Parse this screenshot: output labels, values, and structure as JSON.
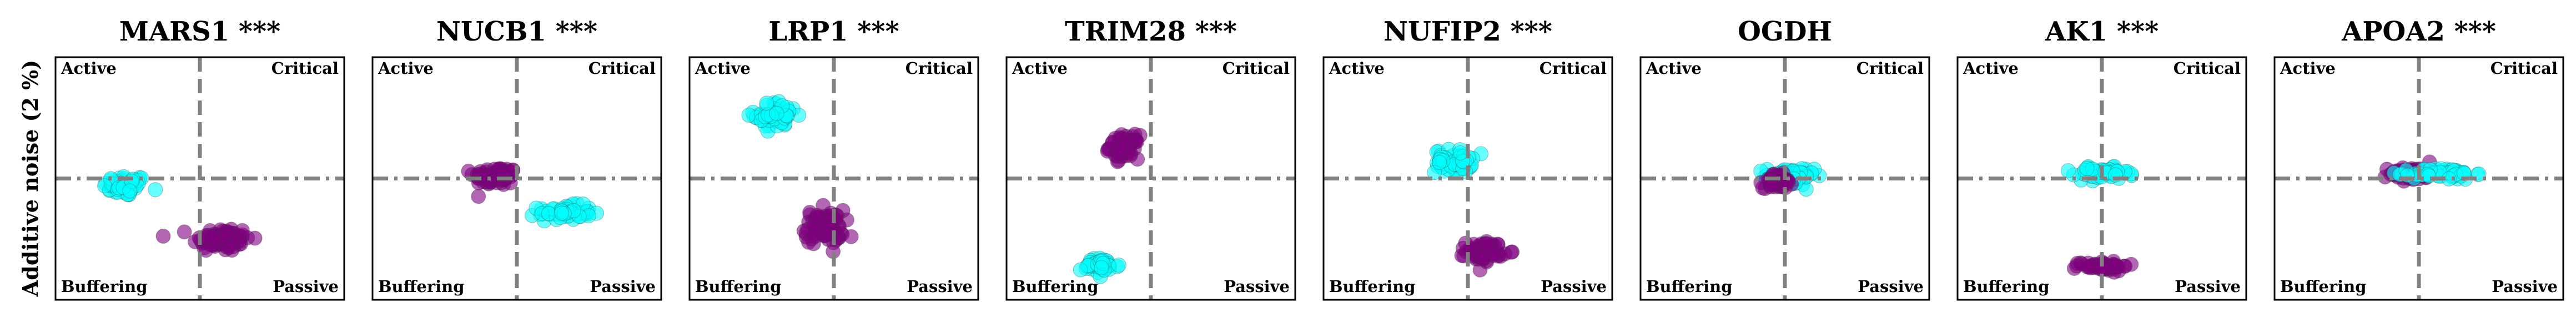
{
  "figure": {
    "ylabel": "Additive noise (2 %)"
  },
  "chart_data": [
    {
      "type": "scatter",
      "title": "MARS1 ***",
      "quadrants": {
        "top_left": "Active",
        "top_right": "Critical",
        "bottom_left": "Buffering",
        "bottom_right": "Passive"
      },
      "series": [
        {
          "color": "#00ffff",
          "center": [
            -1.55,
            -0.15
          ],
          "spread": [
            0.45,
            0.22
          ],
          "n": 60
        },
        {
          "color": "#800080",
          "center": [
            0.45,
            -1.25
          ],
          "spread": [
            0.6,
            0.26
          ],
          "n": 80
        }
      ]
    },
    {
      "type": "scatter",
      "title": "NUCB1 ***",
      "quadrants": {
        "top_left": "Active",
        "top_right": "Critical",
        "bottom_left": "Buffering",
        "bottom_right": "Passive"
      },
      "series": [
        {
          "color": "#800080",
          "center": [
            -0.45,
            0.05
          ],
          "spread": [
            0.45,
            0.2
          ],
          "n": 70
        },
        {
          "color": "#00ffff",
          "center": [
            1.0,
            -0.7
          ],
          "spread": [
            0.55,
            0.15
          ],
          "n": 60
        }
      ]
    },
    {
      "type": "scatter",
      "title": "LRP1 ***",
      "quadrants": {
        "top_left": "Active",
        "top_right": "Critical",
        "bottom_left": "Buffering",
        "bottom_right": "Passive"
      },
      "series": [
        {
          "color": "#00ffff",
          "center": [
            -1.2,
            1.3
          ],
          "spread": [
            0.45,
            0.28
          ],
          "n": 60
        },
        {
          "color": "#800080",
          "center": [
            -0.2,
            -1.0
          ],
          "spread": [
            0.4,
            0.35
          ],
          "n": 80
        }
      ]
    },
    {
      "type": "scatter",
      "title": "TRIM28 ***",
      "quadrants": {
        "top_left": "Active",
        "top_right": "Critical",
        "bottom_left": "Buffering",
        "bottom_right": "Passive"
      },
      "series": [
        {
          "color": "#800080",
          "center": [
            -0.55,
            0.65
          ],
          "spread": [
            0.3,
            0.24
          ],
          "n": 60
        },
        {
          "color": "#00ffff",
          "center": [
            -1.05,
            -1.8
          ],
          "spread": [
            0.4,
            0.16
          ],
          "n": 50
        }
      ]
    },
    {
      "type": "scatter",
      "title": "NUFIP2 ***",
      "quadrants": {
        "top_left": "Active",
        "top_right": "Critical",
        "bottom_left": "Buffering",
        "bottom_right": "Passive"
      },
      "series": [
        {
          "color": "#00ffff",
          "center": [
            -0.3,
            0.35
          ],
          "spread": [
            0.38,
            0.24
          ],
          "n": 60
        },
        {
          "color": "#800080",
          "center": [
            0.35,
            -1.5
          ],
          "spread": [
            0.38,
            0.2
          ],
          "n": 70
        }
      ]
    },
    {
      "type": "scatter",
      "title": "OGDH",
      "quadrants": {
        "top_left": "Active",
        "top_right": "Critical",
        "bottom_left": "Buffering",
        "bottom_right": "Passive"
      },
      "series": [
        {
          "color": "#00ffff",
          "center": [
            0.1,
            0.05
          ],
          "spread": [
            0.5,
            0.18
          ],
          "n": 60
        },
        {
          "color": "#800080",
          "center": [
            -0.15,
            -0.05
          ],
          "spread": [
            0.3,
            0.15
          ],
          "n": 60
        }
      ]
    },
    {
      "type": "scatter",
      "title": "AK1 ***",
      "quadrants": {
        "top_left": "Active",
        "top_right": "Critical",
        "bottom_left": "Buffering",
        "bottom_right": "Passive"
      },
      "series": [
        {
          "color": "#00ffff",
          "center": [
            0.0,
            0.1
          ],
          "spread": [
            0.55,
            0.12
          ],
          "n": 60
        },
        {
          "color": "#800080",
          "center": [
            0.0,
            -1.8
          ],
          "spread": [
            0.55,
            0.1
          ],
          "n": 60
        }
      ]
    },
    {
      "type": "scatter",
      "title": "APOA2 ***",
      "quadrants": {
        "top_left": "Active",
        "top_right": "Critical",
        "bottom_left": "Buffering",
        "bottom_right": "Passive"
      },
      "series": [
        {
          "color": "#800080",
          "center": [
            -0.15,
            0.1
          ],
          "spread": [
            0.45,
            0.14
          ],
          "n": 60
        },
        {
          "color": "#00ffff",
          "center": [
            0.5,
            0.1
          ],
          "spread": [
            0.65,
            0.12
          ],
          "n": 60
        }
      ]
    }
  ],
  "axes": {
    "xlim": [
      -3.0,
      3.0
    ],
    "ylim": [
      -2.5,
      2.5
    ],
    "hline": 0,
    "vline": 0
  }
}
